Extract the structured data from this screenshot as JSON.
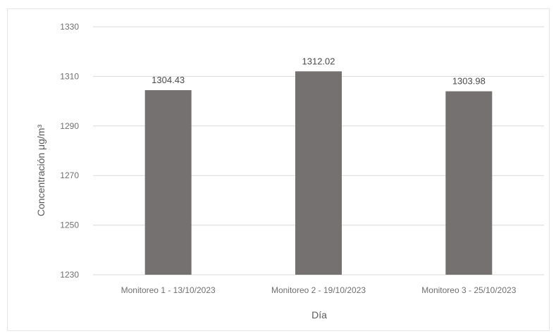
{
  "chart_data": {
    "type": "bar",
    "categories": [
      "Monitoreo 1 - 13/10/2023",
      "Monitoreo 2 - 19/10/2023",
      "Monitoreo 3 - 25/10/2023"
    ],
    "values": [
      1304.43,
      1312.02,
      1303.98
    ],
    "data_labels": [
      "1304.43",
      "1312.02",
      "1303.98"
    ],
    "xlabel": "Día",
    "ylabel": "Concentración μg/m³",
    "ylim": [
      1230,
      1330
    ],
    "yticks": [
      1230,
      1250,
      1270,
      1290,
      1310,
      1330
    ],
    "grid": true,
    "legend": "none",
    "bar_color": "#757170",
    "grid_color": "#d9d9d9"
  }
}
